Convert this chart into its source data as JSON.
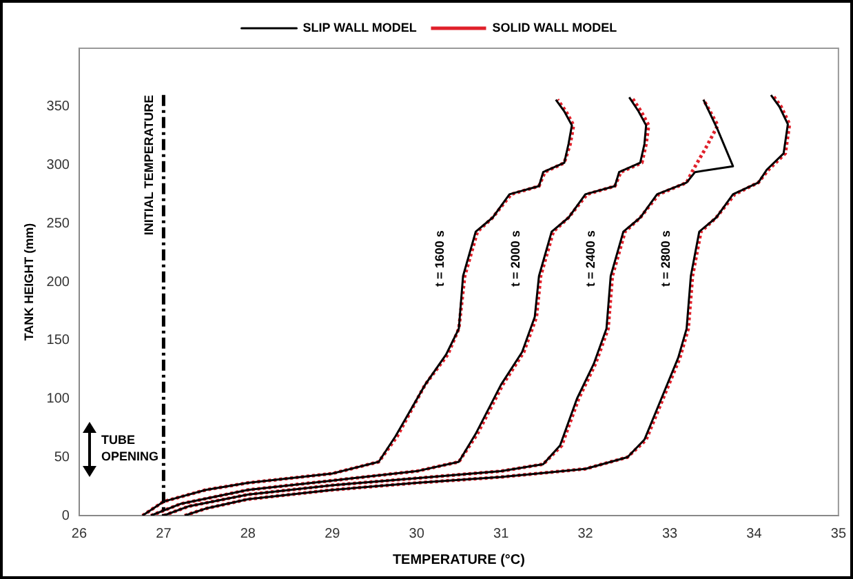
{
  "chart_data": {
    "type": "line",
    "xlabel": "TEMPERATURE (°C)",
    "ylabel": "TANK HEIGHT (mm)",
    "xlim": [
      26,
      35
    ],
    "xticks": [
      26,
      27,
      28,
      29,
      30,
      31,
      32,
      33,
      34,
      35
    ],
    "ylim": [
      0,
      400
    ],
    "yticks": [
      0,
      50,
      100,
      150,
      200,
      250,
      300,
      350
    ],
    "grid": false,
    "legend": "top",
    "marker": "none",
    "series": [
      {
        "name": "SLIP WALL MODEL",
        "color": "#000000",
        "line_style": "solid",
        "x": [
          26.75,
          27.0,
          27.5,
          28,
          29,
          29.55,
          29.75,
          30.1,
          30.35,
          30.5,
          30.55,
          30.7,
          30.9,
          31.1,
          31.45,
          31.5,
          31.75,
          31.8,
          31.84,
          31.75,
          31.65
        ],
        "values": [
          0,
          12,
          22,
          28,
          36,
          46,
          68,
          112,
          138,
          160,
          205,
          243,
          255,
          275,
          282,
          294,
          302,
          318,
          334,
          346,
          356
        ]
      },
      {
        "name": "SOLID WALL MODEL",
        "color": "#e0202a",
        "line_style": "dotted",
        "x": [
          26.75,
          27.0,
          27.5,
          28,
          29,
          29.55,
          29.77,
          30.1,
          30.37,
          30.5,
          30.57,
          30.72,
          30.9,
          31.12,
          31.45,
          31.52,
          31.75,
          31.82,
          31.86,
          31.77,
          31.67
        ],
        "values": [
          0,
          12,
          22,
          28,
          36,
          46,
          68,
          112,
          138,
          160,
          205,
          243,
          255,
          275,
          282,
          294,
          302,
          318,
          334,
          346,
          356
        ]
      },
      {
        "color": "#000000",
        "line_style": "solid",
        "x": [
          26.85,
          27.2,
          28,
          29,
          30,
          30.5,
          30.7,
          31.0,
          31.25,
          31.4,
          31.45,
          31.6,
          31.8,
          32.0,
          32.35,
          32.4,
          32.65,
          32.7,
          32.72,
          32.63,
          32.52
        ],
        "values": [
          0,
          10,
          22,
          30,
          38,
          46,
          70,
          112,
          140,
          170,
          205,
          243,
          255,
          275,
          282,
          294,
          302,
          318,
          334,
          346,
          358
        ]
      },
      {
        "color": "#e0202a",
        "line_style": "dotted",
        "x": [
          26.85,
          27.2,
          28,
          29,
          30,
          30.5,
          30.72,
          31.02,
          31.27,
          31.42,
          31.47,
          31.62,
          31.8,
          32.02,
          32.35,
          32.42,
          32.67,
          32.72,
          32.75,
          32.66,
          32.55
        ],
        "values": [
          0,
          10,
          22,
          30,
          38,
          46,
          70,
          112,
          140,
          170,
          205,
          243,
          255,
          275,
          282,
          294,
          302,
          318,
          334,
          346,
          358
        ]
      },
      {
        "color": "#000000",
        "line_style": "solid",
        "x": [
          27.0,
          27.3,
          28,
          29,
          30,
          31,
          31.5,
          31.7,
          31.9,
          32.1,
          32.25,
          32.3,
          32.45,
          32.65,
          32.85,
          33.2,
          33.3,
          33.75,
          33.57,
          33.4
        ],
        "values": [
          0,
          8,
          18,
          26,
          32,
          38,
          44,
          60,
          100,
          130,
          160,
          205,
          243,
          255,
          275,
          285,
          294,
          299,
          330,
          356
        ]
      },
      {
        "color": "#e0202a",
        "line_style": "dotted",
        "x": [
          27.0,
          27.3,
          28,
          29,
          30,
          31,
          31.5,
          31.72,
          31.92,
          32.12,
          32.27,
          32.32,
          32.47,
          32.65,
          32.87,
          33.2,
          33.27,
          33.43,
          33.57,
          33.4
        ],
        "values": [
          0,
          8,
          18,
          26,
          32,
          38,
          44,
          60,
          100,
          130,
          160,
          205,
          243,
          255,
          275,
          285,
          295,
          315,
          334,
          356
        ]
      },
      {
        "color": "#000000",
        "line_style": "solid",
        "x": [
          27.25,
          27.5,
          28,
          29,
          30,
          31,
          32,
          32.5,
          32.7,
          32.9,
          33.1,
          33.2,
          33.25,
          33.35,
          33.55,
          33.75,
          34.05,
          34.15,
          34.35,
          34.4,
          34.3,
          34.2
        ],
        "values": [
          0,
          6,
          14,
          22,
          28,
          33,
          40,
          50,
          65,
          100,
          135,
          160,
          205,
          243,
          255,
          275,
          285,
          296,
          310,
          335,
          350,
          360
        ]
      },
      {
        "color": "#e0202a",
        "line_style": "dotted",
        "x": [
          27.25,
          27.5,
          28,
          29,
          30,
          31,
          32,
          32.5,
          32.72,
          32.92,
          33.12,
          33.22,
          33.27,
          33.37,
          33.55,
          33.77,
          34.05,
          34.17,
          34.37,
          34.42,
          34.32,
          34.22
        ],
        "values": [
          0,
          6,
          14,
          22,
          28,
          33,
          40,
          50,
          65,
          100,
          135,
          160,
          205,
          243,
          255,
          275,
          285,
          296,
          310,
          335,
          350,
          360
        ]
      }
    ],
    "ref_lines": [
      {
        "axis": "x",
        "value": 27,
        "label": "INITIAL TEMPERATURE",
        "line_style": "dashdot",
        "color": "#000000"
      }
    ],
    "annotations": [
      "t = 1600 s",
      "t = 2000 s",
      "t = 2400 s",
      "t = 2800 s",
      "TUBE OPENING"
    ]
  }
}
